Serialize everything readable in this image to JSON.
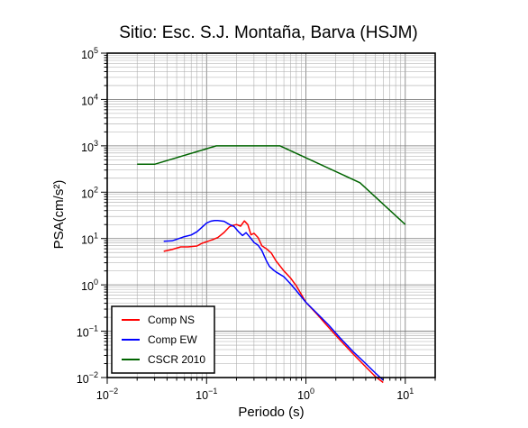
{
  "chart_data": {
    "type": "line",
    "title": "Sitio: Esc. S.J. Montaña, Barva (HSJM)",
    "xlabel": "Periodo (s)",
    "ylabel": "PSA(cm/s²)",
    "xscale": "log",
    "yscale": "log",
    "xlim": [
      0.01,
      20
    ],
    "ylim": [
      0.01,
      100000
    ],
    "grid": true,
    "legend_position": "bottom-left",
    "x_tick_labels": [
      {
        "value": 0.01,
        "base": "10",
        "exp": "−2"
      },
      {
        "value": 0.1,
        "base": "10",
        "exp": "−1"
      },
      {
        "value": 1,
        "base": "10",
        "exp": "0"
      },
      {
        "value": 10,
        "base": "10",
        "exp": "1"
      }
    ],
    "y_tick_labels": [
      {
        "value": 0.01,
        "base": "10",
        "exp": "−2"
      },
      {
        "value": 0.1,
        "base": "10",
        "exp": "−1"
      },
      {
        "value": 1,
        "base": "10",
        "exp": "0"
      },
      {
        "value": 10,
        "base": "10",
        "exp": "1"
      },
      {
        "value": 100,
        "base": "10",
        "exp": "2"
      },
      {
        "value": 1000,
        "base": "10",
        "exp": "3"
      },
      {
        "value": 10000,
        "base": "10",
        "exp": "4"
      },
      {
        "value": 100000,
        "base": "10",
        "exp": "5"
      }
    ],
    "series": [
      {
        "name": "Comp NS",
        "color": "#ff0000",
        "x": [
          0.037,
          0.045,
          0.055,
          0.065,
          0.08,
          0.09,
          0.1,
          0.115,
          0.13,
          0.15,
          0.17,
          0.19,
          0.2,
          0.22,
          0.24,
          0.26,
          0.28,
          0.3,
          0.33,
          0.36,
          0.4,
          0.45,
          0.5,
          0.6,
          0.7,
          0.8,
          1,
          1.3,
          1.7,
          2.2,
          3,
          4,
          5,
          6
        ],
        "y": [
          5.3,
          5.8,
          6.6,
          6.6,
          6.9,
          7.9,
          8.5,
          9.5,
          10.5,
          13.5,
          18,
          19.5,
          20,
          18.5,
          24,
          20,
          12,
          13,
          10.5,
          7,
          6,
          4.8,
          3.3,
          2,
          1.4,
          0.95,
          0.42,
          0.23,
          0.12,
          0.065,
          0.032,
          0.017,
          0.0105,
          0.0078
        ]
      },
      {
        "name": "Comp EW",
        "color": "#0000ff",
        "x": [
          0.037,
          0.045,
          0.05,
          0.06,
          0.07,
          0.08,
          0.09,
          0.1,
          0.11,
          0.12,
          0.13,
          0.15,
          0.17,
          0.19,
          0.21,
          0.23,
          0.25,
          0.28,
          0.3,
          0.33,
          0.36,
          0.4,
          0.43,
          0.47,
          0.5,
          0.6,
          0.7,
          0.8,
          1,
          1.3,
          1.7,
          2.2,
          3,
          4,
          5,
          6
        ],
        "y": [
          8.7,
          8.9,
          9.6,
          11,
          11.9,
          14,
          17.5,
          21.5,
          23.6,
          24.4,
          24.4,
          23.5,
          20,
          18,
          14,
          11.6,
          13.4,
          10,
          8.2,
          7.2,
          5.5,
          3.3,
          2.5,
          2.1,
          1.9,
          1.5,
          1.05,
          0.75,
          0.42,
          0.24,
          0.135,
          0.072,
          0.036,
          0.02,
          0.0125,
          0.0088
        ]
      },
      {
        "name": "CSCR 2010",
        "color": "#006400",
        "x": [
          0.02,
          0.03,
          0.125,
          0.5,
          0.55,
          3.5,
          10
        ],
        "y": [
          400,
          400,
          1000,
          1000,
          1000,
          160,
          20
        ]
      }
    ]
  }
}
